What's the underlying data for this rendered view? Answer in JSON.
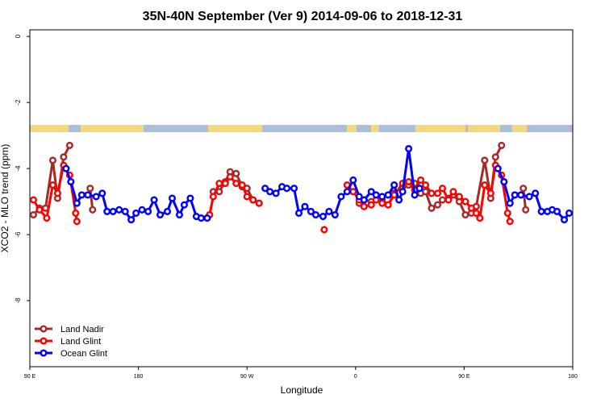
{
  "chart_data": {
    "type": "line",
    "title": "35N-40N September (Ver 9)   2014-09-06 to 2018-12-31",
    "x_label": "Longitude",
    "y_label": "XCO2 - MLO trend (ppm)",
    "xlim": [
      90,
      540
    ],
    "ylim": [
      -10,
      0.2
    ],
    "xticks": [
      {
        "value": 90,
        "label": "90 E"
      },
      180,
      {
        "value": 270,
        "label": "90 W"
      },
      {
        "value": 360,
        "label": "0"
      },
      {
        "value": 450,
        "label": "90 E"
      },
      {
        "value": 540,
        "label": "180"
      }
    ],
    "yticks": [
      0,
      -2,
      -4,
      -6,
      -8
    ],
    "legend": "bottom-left",
    "series": [
      {
        "name": "Land Nadir",
        "color": "#a52a2a",
        "x": [
          93,
          98,
          103,
          109,
          113,
          118,
          123,
          null,
          140,
          142,
          null,
          242,
          247,
          252,
          256,
          261,
          266,
          270,
          275,
          280,
          null,
          363,
          367,
          373,
          382,
          387,
          392,
          399,
          404,
          409,
          414,
          418,
          423,
          428,
          432,
          437,
          441,
          446,
          451,
          456,
          460,
          467,
          472,
          476,
          481,
          null,
          499,
          501
        ],
        "values": [
          -5.4,
          -5.2,
          -5.2,
          -3.75,
          -4.9,
          -3.65,
          -3.3,
          null,
          -4.6,
          -5.25,
          null,
          -4.7,
          -4.7,
          -4.4,
          -4.1,
          -4.15,
          -4.55,
          -4.6,
          -4.95,
          -5.05,
          null,
          -5.05,
          -4.95,
          -5.0,
          -4.95,
          -5.1,
          -4.75,
          -4.55,
          -4.5,
          -4.45,
          -4.75,
          -4.7,
          -5.2,
          -5.1,
          -4.95,
          -4.9,
          -4.8,
          -5.0,
          -5.4,
          -5.35,
          -5.15,
          -3.75,
          -4.9,
          -3.65,
          -3.3,
          null,
          -4.6,
          -5.25
        ]
      },
      {
        "name": "Land Glint",
        "color": "#ff0000",
        "x": [
          93,
          98,
          104,
          109,
          113,
          118,
          123,
          128,
          129,
          null,
          239,
          242,
          247,
          252,
          256,
          261,
          266,
          270,
          275,
          280,
          null,
          334,
          null,
          353,
          358,
          363,
          367,
          373,
          377,
          382,
          387,
          392,
          399,
          404,
          409,
          414,
          418,
          423,
          428,
          432,
          437,
          441,
          446,
          451,
          456,
          460,
          463,
          467,
          472,
          476,
          481,
          486,
          488
        ],
        "values": [
          -4.95,
          -5.25,
          -5.5,
          -4.5,
          -4.75,
          -3.9,
          -4.2,
          -5.35,
          -5.6,
          null,
          -5.4,
          -4.85,
          -4.45,
          -4.45,
          -4.25,
          -4.45,
          -4.5,
          -4.85,
          -4.95,
          -5.05,
          null,
          -5.85,
          null,
          -4.5,
          -4.7,
          -4.95,
          -5.15,
          -5.1,
          -4.95,
          -5.05,
          -5.1,
          -4.8,
          -4.45,
          -4.4,
          -4.65,
          -4.35,
          -4.5,
          -4.75,
          -4.75,
          -4.6,
          -4.95,
          -4.7,
          -4.85,
          -5.0,
          -5.2,
          -5.35,
          -5.5,
          -4.5,
          -4.75,
          -3.9,
          -4.2,
          -5.35,
          -5.6
        ]
      },
      {
        "name": "Ocean Glint",
        "color": "#0000ff",
        "x": [
          120,
          124,
          129,
          133,
          138,
          145,
          150,
          154,
          159,
          164,
          169,
          174,
          178,
          183,
          188,
          193,
          198,
          204,
          208,
          214,
          218,
          223,
          228,
          232,
          237,
          null,
          285,
          289,
          294,
          299,
          303,
          309,
          313,
          318,
          323,
          327,
          333,
          338,
          343,
          348,
          353,
          358,
          363,
          367,
          373,
          377,
          382,
          387,
          392,
          396,
          399,
          404,
          409,
          413,
          null,
          478,
          483,
          488,
          492,
          497,
          504,
          509,
          514,
          519,
          523,
          527,
          533,
          537
        ],
        "values": [
          -4.0,
          -4.4,
          -5.05,
          -4.8,
          -4.8,
          -4.85,
          -4.75,
          -5.3,
          -5.3,
          -5.25,
          -5.3,
          -5.55,
          -5.35,
          -5.25,
          -5.3,
          -4.95,
          -5.4,
          -5.3,
          -4.9,
          -5.4,
          -5.1,
          -4.9,
          -5.45,
          -5.5,
          -5.5,
          null,
          -4.6,
          -4.7,
          -4.75,
          -4.55,
          -4.6,
          -4.6,
          -5.35,
          -5.15,
          -5.3,
          -5.4,
          -5.45,
          -5.3,
          -5.4,
          -4.85,
          -4.7,
          -4.35,
          -4.85,
          -4.95,
          -4.7,
          -4.8,
          -4.85,
          -4.8,
          -4.5,
          -4.95,
          -4.7,
          -3.4,
          -4.8,
          -4.6,
          null,
          -4.0,
          -4.4,
          -5.05,
          -4.8,
          -4.8,
          -4.85,
          -4.75,
          -5.3,
          -5.3,
          -5.25,
          -5.3,
          -5.55,
          -5.35
        ]
      }
    ]
  }
}
